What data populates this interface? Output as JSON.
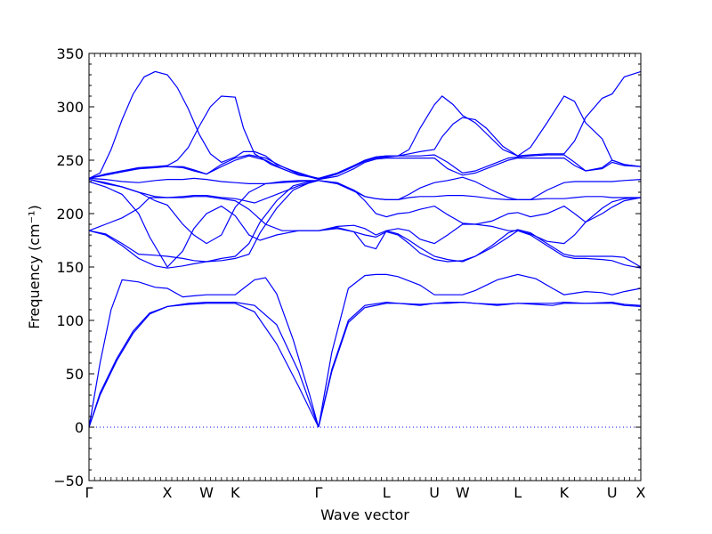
{
  "chart_data": {
    "type": "line",
    "title": "",
    "xlabel": "Wave vector",
    "ylabel": "Frequency (cm⁻¹)",
    "ylim": [
      -50,
      350
    ],
    "xlim": [
      0,
      1
    ],
    "yticks": [
      -50,
      0,
      50,
      100,
      150,
      200,
      250,
      300,
      350
    ],
    "ytick_labels": [
      "−50",
      "0",
      "50",
      "100",
      "150",
      "200",
      "250",
      "300",
      "350"
    ],
    "high_symmetry_points": [
      {
        "label": "Γ",
        "x": 0.0
      },
      {
        "label": "X",
        "x": 0.142
      },
      {
        "label": "W",
        "x": 0.213
      },
      {
        "label": "K",
        "x": 0.265
      },
      {
        "label": "Γ",
        "x": 0.416
      },
      {
        "label": "L",
        "x": 0.539
      },
      {
        "label": "U",
        "x": 0.626
      },
      {
        "label": "W",
        "x": 0.677
      },
      {
        "label": "L",
        "x": 0.777
      },
      {
        "label": "K",
        "x": 0.861
      },
      {
        "label": "U",
        "x": 0.948
      },
      {
        "label": "X",
        "x": 1.0
      }
    ],
    "zero_line": true,
    "grid": false,
    "series": [
      {
        "x": [
          0,
          0.02,
          0.05,
          0.08,
          0.11,
          0.142,
          0.18,
          0.213,
          0.24,
          0.265,
          0.3,
          0.34,
          0.38,
          0.416
        ],
        "y": [
          0,
          30,
          62,
          88,
          106,
          113,
          115,
          116,
          116,
          116,
          108,
          78,
          38,
          0
        ]
      },
      {
        "x": [
          0,
          0.02,
          0.05,
          0.08,
          0.11,
          0.142,
          0.18,
          0.213,
          0.24,
          0.265,
          0.3,
          0.34,
          0.38,
          0.416
        ],
        "y": [
          0,
          32,
          64,
          90,
          107,
          113,
          116,
          117,
          117,
          117,
          114,
          96,
          52,
          0
        ]
      },
      {
        "x": [
          0,
          0.02,
          0.04,
          0.06,
          0.09,
          0.12,
          0.142,
          0.17,
          0.19,
          0.213,
          0.24,
          0.265,
          0.28,
          0.3,
          0.32,
          0.34,
          0.37,
          0.4,
          0.416
        ],
        "y": [
          0,
          60,
          110,
          138,
          136,
          131,
          130,
          122,
          123,
          124,
          124,
          124,
          130,
          138,
          140,
          125,
          82,
          30,
          0
        ]
      },
      {
        "x": [
          0.416,
          0.44,
          0.47,
          0.5,
          0.539,
          0.56,
          0.6,
          0.626,
          0.65,
          0.677,
          0.7,
          0.74,
          0.777,
          0.81,
          0.84,
          0.861,
          0.9,
          0.948,
          0.97,
          1.0
        ],
        "y": [
          0,
          52,
          98,
          112,
          116,
          116,
          115,
          116,
          116,
          117,
          116,
          115,
          116,
          116,
          116,
          117,
          116,
          116,
          114,
          113
        ]
      },
      {
        "x": [
          0.416,
          0.44,
          0.47,
          0.5,
          0.539,
          0.56,
          0.6,
          0.626,
          0.65,
          0.677,
          0.7,
          0.74,
          0.777,
          0.81,
          0.84,
          0.861,
          0.9,
          0.948,
          0.97,
          1.0
        ],
        "y": [
          0,
          54,
          100,
          114,
          117,
          116,
          114,
          116,
          117,
          117,
          116,
          114,
          116,
          115,
          114,
          116,
          116,
          117,
          115,
          114
        ]
      },
      {
        "x": [
          0.416,
          0.44,
          0.47,
          0.5,
          0.52,
          0.539,
          0.56,
          0.6,
          0.626,
          0.65,
          0.677,
          0.7,
          0.74,
          0.777,
          0.81,
          0.84,
          0.861,
          0.9,
          0.93,
          0.948,
          0.97,
          1.0
        ],
        "y": [
          0,
          70,
          130,
          142,
          143,
          143,
          141,
          133,
          124,
          124,
          124,
          128,
          138,
          143,
          139,
          130,
          124,
          127,
          126,
          124,
          127,
          130
        ]
      },
      {
        "x": [
          0,
          0.03,
          0.06,
          0.09,
          0.12,
          0.142,
          0.17,
          0.19,
          0.213,
          0.24,
          0.265,
          0.29,
          0.31,
          0.34,
          0.37,
          0.4,
          0.416
        ],
        "y": [
          184,
          180,
          170,
          158,
          151,
          149,
          151,
          153,
          155,
          158,
          160,
          172,
          192,
          212,
          226,
          230,
          231
        ]
      },
      {
        "x": [
          0,
          0.03,
          0.06,
          0.09,
          0.12,
          0.142,
          0.17,
          0.19,
          0.213,
          0.24,
          0.265,
          0.29,
          0.31,
          0.34,
          0.37,
          0.4,
          0.416
        ],
        "y": [
          184,
          181,
          172,
          162,
          161,
          160,
          158,
          156,
          155,
          156,
          158,
          162,
          182,
          205,
          222,
          229,
          231
        ]
      },
      {
        "x": [
          0,
          0.03,
          0.06,
          0.09,
          0.11,
          0.142,
          0.17,
          0.19,
          0.213,
          0.24,
          0.265,
          0.29,
          0.32,
          0.35,
          0.38,
          0.416
        ],
        "y": [
          184,
          190,
          196,
          205,
          215,
          215,
          215,
          216,
          216,
          214,
          212,
          204,
          190,
          184,
          184,
          184
        ]
      },
      {
        "x": [
          0,
          0.03,
          0.06,
          0.09,
          0.11,
          0.142,
          0.17,
          0.19,
          0.213,
          0.24,
          0.265,
          0.29,
          0.31,
          0.34,
          0.38,
          0.416
        ],
        "y": [
          230,
          225,
          218,
          200,
          178,
          150,
          165,
          186,
          200,
          207,
          198,
          180,
          175,
          180,
          184,
          184
        ]
      },
      {
        "x": [
          0,
          0.03,
          0.06,
          0.09,
          0.12,
          0.142,
          0.17,
          0.19,
          0.213,
          0.24,
          0.265,
          0.29,
          0.32,
          0.35,
          0.38,
          0.416
        ],
        "y": [
          232,
          228,
          225,
          220,
          212,
          208,
          190,
          180,
          172,
          180,
          206,
          220,
          228,
          230,
          231,
          231
        ]
      },
      {
        "x": [
          0,
          0.03,
          0.06,
          0.09,
          0.12,
          0.142,
          0.17,
          0.19,
          0.213,
          0.24,
          0.265,
          0.3,
          0.34,
          0.38,
          0.416
        ],
        "y": [
          232,
          229,
          225,
          220,
          216,
          215,
          216,
          217,
          217,
          215,
          214,
          210,
          218,
          226,
          231
        ]
      },
      {
        "x": [
          0,
          0.03,
          0.06,
          0.09,
          0.12,
          0.142,
          0.17,
          0.19,
          0.213,
          0.24,
          0.265,
          0.29,
          0.32,
          0.35,
          0.38,
          0.416
        ],
        "y": [
          233,
          232,
          230,
          229,
          231,
          232,
          232,
          233,
          232,
          230,
          229,
          228,
          228,
          229,
          230,
          231
        ]
      },
      {
        "x": [
          0,
          0.03,
          0.06,
          0.09,
          0.12,
          0.142,
          0.17,
          0.19,
          0.213,
          0.24,
          0.265,
          0.29,
          0.32,
          0.35,
          0.38,
          0.416
        ],
        "y": [
          233,
          237,
          240,
          242,
          244,
          244,
          243,
          240,
          237,
          246,
          252,
          255,
          252,
          244,
          237,
          232
        ]
      },
      {
        "x": [
          0,
          0.03,
          0.06,
          0.09,
          0.12,
          0.142,
          0.17,
          0.19,
          0.213,
          0.24,
          0.265,
          0.29,
          0.32,
          0.35,
          0.38,
          0.416
        ],
        "y": [
          233,
          236,
          239,
          242,
          243,
          244,
          244,
          241,
          237,
          244,
          250,
          254,
          250,
          242,
          236,
          233
        ]
      },
      {
        "x": [
          0,
          0.02,
          0.04,
          0.06,
          0.08,
          0.1,
          0.12,
          0.142,
          0.16,
          0.18,
          0.2,
          0.22,
          0.24,
          0.265,
          0.28,
          0.3,
          0.32,
          0.34,
          0.37,
          0.4,
          0.416
        ],
        "y": [
          233,
          238,
          260,
          288,
          312,
          328,
          333,
          330,
          318,
          298,
          274,
          256,
          248,
          253,
          258,
          258,
          254,
          246,
          240,
          235,
          233
        ]
      },
      {
        "x": [
          0,
          0.03,
          0.06,
          0.09,
          0.12,
          0.142,
          0.16,
          0.18,
          0.2,
          0.22,
          0.24,
          0.265,
          0.28,
          0.3,
          0.33,
          0.37,
          0.416
        ],
        "y": [
          233,
          237,
          240,
          243,
          244,
          245,
          250,
          262,
          282,
          300,
          310,
          309,
          280,
          256,
          246,
          238,
          233
        ]
      },
      {
        "x": [
          0.416,
          0.45,
          0.48,
          0.5,
          0.52,
          0.539,
          0.56,
          0.58,
          0.6,
          0.626,
          0.65,
          0.677,
          0.7,
          0.73,
          0.76,
          0.777,
          0.8,
          0.83,
          0.861,
          0.88,
          0.9,
          0.93,
          0.948,
          0.97,
          1.0
        ],
        "y": [
          184,
          188,
          189,
          186,
          180,
          184,
          186,
          184,
          176,
          172,
          180,
          190,
          190,
          188,
          184,
          184,
          181,
          174,
          172,
          180,
          192,
          205,
          211,
          214,
          215
        ]
      },
      {
        "x": [
          0.416,
          0.45,
          0.48,
          0.5,
          0.52,
          0.539,
          0.56,
          0.58,
          0.6,
          0.626,
          0.65,
          0.677,
          0.7,
          0.73,
          0.76,
          0.777,
          0.8,
          0.83,
          0.861,
          0.88,
          0.9,
          0.93,
          0.948,
          0.97,
          1.0
        ],
        "y": [
          184,
          187,
          183,
          170,
          167,
          184,
          181,
          175,
          168,
          160,
          157,
          155,
          160,
          170,
          182,
          185,
          182,
          172,
          162,
          160,
          160,
          160,
          160,
          159,
          150
        ]
      },
      {
        "x": [
          0.416,
          0.45,
          0.48,
          0.5,
          0.52,
          0.539,
          0.56,
          0.58,
          0.6,
          0.626,
          0.65,
          0.677,
          0.7,
          0.73,
          0.76,
          0.777,
          0.8,
          0.83,
          0.861,
          0.88,
          0.9,
          0.93,
          0.948,
          0.97,
          1.0
        ],
        "y": [
          184,
          186,
          183,
          180,
          178,
          183,
          180,
          172,
          163,
          157,
          155,
          156,
          160,
          168,
          178,
          184,
          180,
          170,
          160,
          158,
          158,
          157,
          156,
          152,
          149
        ]
      },
      {
        "x": [
          0.416,
          0.45,
          0.48,
          0.5,
          0.52,
          0.539,
          0.56,
          0.58,
          0.6,
          0.626,
          0.65,
          0.677,
          0.7,
          0.73,
          0.76,
          0.777,
          0.8,
          0.83,
          0.861,
          0.88,
          0.9,
          0.93,
          0.948,
          0.97,
          1.0
        ],
        "y": [
          231,
          228,
          222,
          212,
          200,
          197,
          200,
          201,
          204,
          207,
          199,
          191,
          190,
          193,
          200,
          201,
          197,
          200,
          207,
          200,
          192,
          200,
          206,
          212,
          215
        ]
      },
      {
        "x": [
          0.416,
          0.45,
          0.48,
          0.5,
          0.52,
          0.539,
          0.56,
          0.58,
          0.6,
          0.626,
          0.65,
          0.677,
          0.7,
          0.73,
          0.76,
          0.777,
          0.8,
          0.83,
          0.861,
          0.88,
          0.9,
          0.93,
          0.948,
          0.97,
          1.0
        ],
        "y": [
          231,
          229,
          222,
          216,
          214,
          213,
          213,
          215,
          216,
          216,
          217,
          217,
          216,
          214,
          213,
          213,
          213,
          214,
          214,
          215,
          216,
          216,
          215,
          215,
          215
        ]
      },
      {
        "x": [
          0.416,
          0.45,
          0.48,
          0.5,
          0.52,
          0.539,
          0.56,
          0.58,
          0.6,
          0.626,
          0.65,
          0.677,
          0.7,
          0.73,
          0.76,
          0.777,
          0.8,
          0.83,
          0.861,
          0.88,
          0.9,
          0.93,
          0.948,
          0.97,
          1.0
        ],
        "y": [
          231,
          228,
          221,
          216,
          214,
          213,
          213,
          218,
          224,
          229,
          231,
          234,
          230,
          222,
          215,
          213,
          213,
          222,
          229,
          230,
          230,
          230,
          230,
          231,
          232
        ]
      },
      {
        "x": [
          0.416,
          0.45,
          0.48,
          0.5,
          0.52,
          0.539,
          0.56,
          0.58,
          0.6,
          0.626,
          0.65,
          0.677,
          0.7,
          0.73,
          0.76,
          0.777,
          0.8,
          0.83,
          0.861,
          0.88,
          0.9,
          0.93,
          0.948,
          0.97,
          1.0
        ],
        "y": [
          232,
          235,
          242,
          248,
          251,
          252,
          252,
          252,
          252,
          252,
          242,
          236,
          238,
          244,
          250,
          252,
          252,
          252,
          252,
          245,
          240,
          243,
          250,
          246,
          244
        ]
      },
      {
        "x": [
          0.416,
          0.45,
          0.48,
          0.5,
          0.52,
          0.539,
          0.56,
          0.58,
          0.6,
          0.626,
          0.65,
          0.677,
          0.7,
          0.73,
          0.76,
          0.777,
          0.8,
          0.83,
          0.861,
          0.88,
          0.9,
          0.93,
          0.948,
          0.97,
          1.0
        ],
        "y": [
          232,
          237,
          244,
          249,
          252,
          253,
          254,
          254,
          254,
          255,
          248,
          238,
          240,
          246,
          252,
          253,
          254,
          255,
          255,
          248,
          240,
          242,
          248,
          245,
          244
        ]
      },
      {
        "x": [
          0.416,
          0.45,
          0.48,
          0.5,
          0.52,
          0.539,
          0.56,
          0.58,
          0.6,
          0.626,
          0.64,
          0.66,
          0.677,
          0.7,
          0.72,
          0.75,
          0.777,
          0.8,
          0.83,
          0.861,
          0.88,
          0.9,
          0.93,
          0.948,
          0.97,
          1.0
        ],
        "y": [
          233,
          238,
          245,
          250,
          253,
          254,
          254,
          260,
          280,
          302,
          310,
          302,
          292,
          285,
          275,
          260,
          254,
          262,
          285,
          310,
          305,
          285,
          270,
          250,
          246,
          244
        ]
      },
      {
        "x": [
          0.416,
          0.45,
          0.48,
          0.5,
          0.52,
          0.539,
          0.56,
          0.58,
          0.6,
          0.626,
          0.64,
          0.66,
          0.677,
          0.7,
          0.72,
          0.75,
          0.777,
          0.8,
          0.83,
          0.861,
          0.88,
          0.9,
          0.93,
          0.948,
          0.97,
          1.0
        ],
        "y": [
          233,
          238,
          245,
          250,
          253,
          254,
          254,
          256,
          258,
          260,
          272,
          284,
          290,
          288,
          280,
          263,
          254,
          255,
          256,
          256,
          268,
          290,
          308,
          312,
          328,
          333
        ]
      }
    ]
  }
}
